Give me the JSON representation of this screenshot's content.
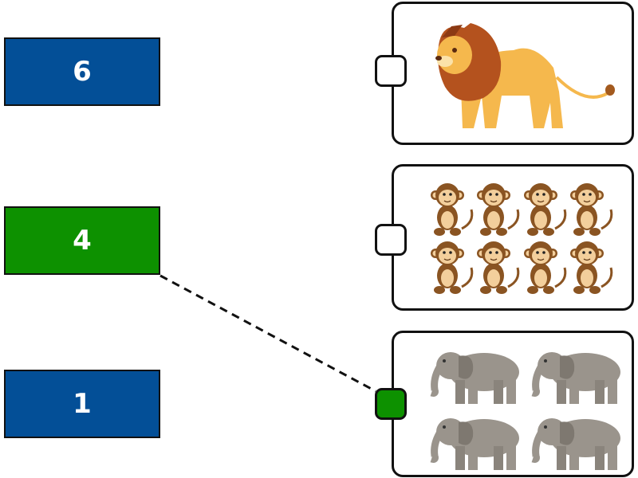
{
  "numbers": [
    {
      "label": "6",
      "color": "#034f97"
    },
    {
      "label": "4",
      "color": "#0d9100"
    },
    {
      "label": "1",
      "color": "#034f97"
    }
  ],
  "cards": [
    {
      "animal": "lion",
      "count": 1
    },
    {
      "animal": "monkey",
      "count": 8
    },
    {
      "animal": "elephant",
      "count": 4
    }
  ],
  "connector_colors": {
    "empty": "#ffffff",
    "selected": "#0d9100"
  },
  "connection": {
    "from_number": "4",
    "to_card": "elephant"
  }
}
